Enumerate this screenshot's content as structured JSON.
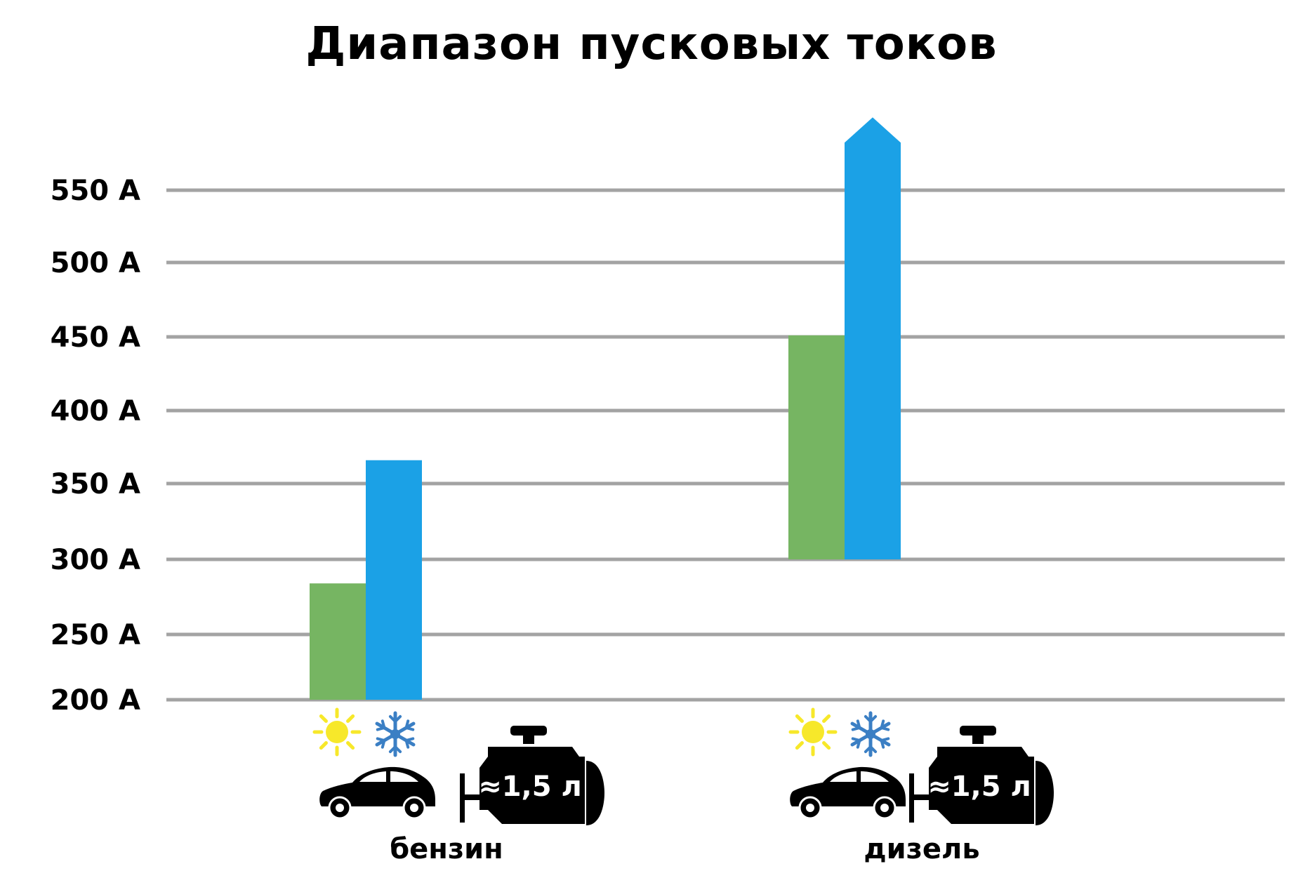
{
  "colors": {
    "sun": "#F7E82A",
    "snow": "#3B7FC4",
    "green_series": "#76B562",
    "blue_series": "#1BA1E6",
    "grid": "#A3A3A3"
  },
  "chart_data": {
    "type": "bar",
    "title": "Диапазон пусковых токов",
    "xlabel": "",
    "ylabel": "",
    "ylim": [
      200,
      600
    ],
    "y_ticks": [
      200,
      250,
      300,
      350,
      400,
      450,
      500,
      550
    ],
    "y_tick_labels": [
      "200 A",
      "250 A",
      "300 A",
      "350 A",
      "400 A",
      "450 A",
      "500 A",
      "550 A"
    ],
    "grid": true,
    "legend": "none",
    "categories": [
      "бензин",
      "дизель"
    ],
    "engine_label": "≈1,5 л",
    "icons": [
      "sun-icon",
      "snowflake-icon",
      "car-icon",
      "engine-icon"
    ],
    "series": [
      {
        "color": "#76B562",
        "condition_icon": "sun-icon",
        "ranges": [
          [
            200,
            284
          ],
          [
            300,
            451
          ]
        ]
      },
      {
        "color": "#1BA1E6",
        "condition_icon": "snowflake-icon",
        "ranges": [
          [
            200,
            366
          ],
          [
            300,
            600
          ]
        ],
        "open_ended_top": [
          false,
          true
        ]
      }
    ]
  }
}
